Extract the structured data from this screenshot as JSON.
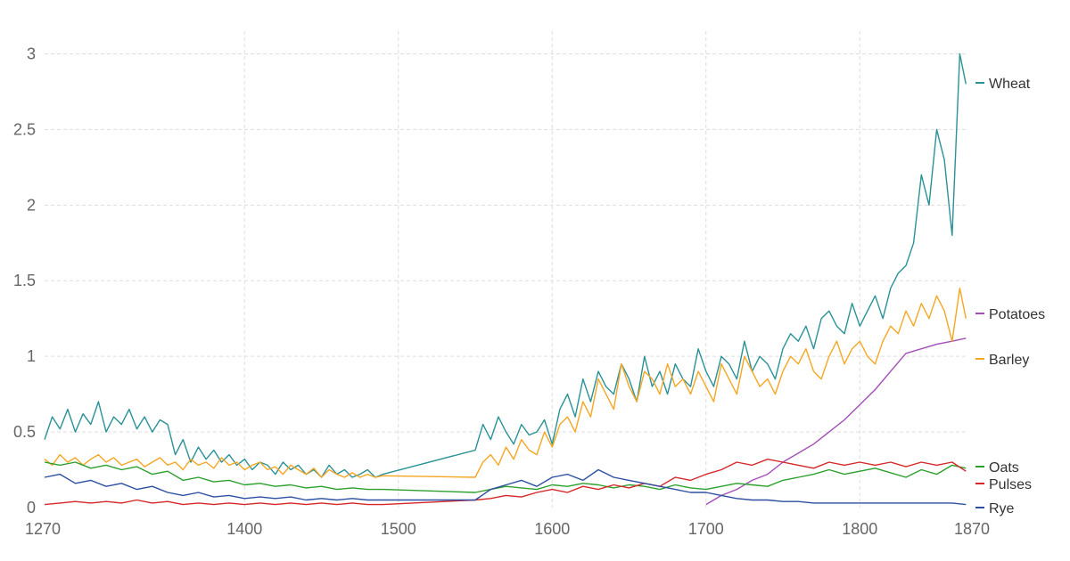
{
  "chart_data": {
    "type": "line",
    "title": "",
    "xlabel": "",
    "ylabel": "",
    "xlim": [
      1270,
      1870
    ],
    "ylim": [
      0,
      3.15
    ],
    "x_ticks": [
      1270,
      1400,
      1500,
      1600,
      1700,
      1800,
      1870
    ],
    "x_tick_labels": [
      "1270",
      "1400",
      "1500",
      "1600",
      "1700",
      "1800",
      "1870"
    ],
    "y_ticks": [
      0,
      0.5,
      1,
      1.5,
      2,
      2.5,
      3
    ],
    "y_tick_labels": [
      "0",
      "0.5",
      "1",
      "1.5",
      "2",
      "2.5",
      "3"
    ],
    "grid": true,
    "legend_position": "right, at series ends",
    "series": [
      {
        "name": "Wheat",
        "color": "#2a9297",
        "x": [
          1270,
          1275,
          1280,
          1285,
          1290,
          1295,
          1300,
          1305,
          1310,
          1315,
          1320,
          1325,
          1330,
          1335,
          1340,
          1345,
          1350,
          1355,
          1360,
          1365,
          1370,
          1375,
          1380,
          1385,
          1390,
          1395,
          1400,
          1405,
          1410,
          1415,
          1420,
          1425,
          1430,
          1435,
          1440,
          1445,
          1450,
          1455,
          1460,
          1465,
          1470,
          1475,
          1480,
          1485,
          1490,
          1550,
          1555,
          1560,
          1565,
          1570,
          1575,
          1580,
          1585,
          1590,
          1595,
          1600,
          1605,
          1610,
          1615,
          1620,
          1625,
          1630,
          1635,
          1640,
          1645,
          1650,
          1655,
          1660,
          1665,
          1670,
          1675,
          1680,
          1685,
          1690,
          1695,
          1700,
          1705,
          1710,
          1715,
          1720,
          1725,
          1730,
          1735,
          1740,
          1745,
          1750,
          1755,
          1760,
          1765,
          1770,
          1775,
          1780,
          1785,
          1790,
          1795,
          1800,
          1805,
          1810,
          1815,
          1820,
          1825,
          1830,
          1835,
          1840,
          1845,
          1850,
          1855,
          1860,
          1865,
          1869
        ],
        "values": [
          0.45,
          0.6,
          0.52,
          0.65,
          0.5,
          0.62,
          0.55,
          0.7,
          0.5,
          0.6,
          0.55,
          0.65,
          0.52,
          0.6,
          0.5,
          0.58,
          0.55,
          0.35,
          0.45,
          0.3,
          0.4,
          0.32,
          0.38,
          0.3,
          0.35,
          0.28,
          0.32,
          0.25,
          0.3,
          0.28,
          0.22,
          0.3,
          0.25,
          0.28,
          0.22,
          0.25,
          0.2,
          0.28,
          0.22,
          0.25,
          0.2,
          0.22,
          0.25,
          0.2,
          0.22,
          0.38,
          0.55,
          0.45,
          0.6,
          0.5,
          0.42,
          0.55,
          0.48,
          0.5,
          0.58,
          0.42,
          0.65,
          0.75,
          0.6,
          0.85,
          0.7,
          0.9,
          0.8,
          0.75,
          0.95,
          0.85,
          0.7,
          1.0,
          0.8,
          0.9,
          0.75,
          0.95,
          0.85,
          0.8,
          1.05,
          0.9,
          0.8,
          1.0,
          0.95,
          0.85,
          1.1,
          0.9,
          1.0,
          0.95,
          0.85,
          1.05,
          1.15,
          1.1,
          1.2,
          1.05,
          1.25,
          1.3,
          1.2,
          1.15,
          1.35,
          1.2,
          1.3,
          1.4,
          1.25,
          1.45,
          1.55,
          1.6,
          1.75,
          2.2,
          2.0,
          2.5,
          2.3,
          1.8,
          3.0,
          2.8
        ]
      },
      {
        "name": "Potatoes",
        "color": "#a34eb8",
        "x": [
          1700,
          1710,
          1720,
          1730,
          1740,
          1750,
          1760,
          1770,
          1780,
          1790,
          1800,
          1810,
          1820,
          1830,
          1840,
          1850,
          1860,
          1869
        ],
        "values": [
          0.02,
          0.08,
          0.12,
          0.18,
          0.22,
          0.3,
          0.36,
          0.42,
          0.5,
          0.58,
          0.68,
          0.78,
          0.9,
          1.02,
          1.05,
          1.08,
          1.1,
          1.12
        ]
      },
      {
        "name": "Barley",
        "color": "#f5a623",
        "x": [
          1270,
          1275,
          1280,
          1285,
          1290,
          1295,
          1300,
          1305,
          1310,
          1315,
          1320,
          1325,
          1330,
          1335,
          1340,
          1345,
          1350,
          1355,
          1360,
          1365,
          1370,
          1375,
          1380,
          1385,
          1390,
          1395,
          1400,
          1405,
          1410,
          1415,
          1420,
          1425,
          1430,
          1435,
          1440,
          1445,
          1450,
          1455,
          1460,
          1465,
          1470,
          1475,
          1480,
          1485,
          1490,
          1550,
          1555,
          1560,
          1565,
          1570,
          1575,
          1580,
          1585,
          1590,
          1595,
          1600,
          1605,
          1610,
          1615,
          1620,
          1625,
          1630,
          1635,
          1640,
          1645,
          1650,
          1655,
          1660,
          1665,
          1670,
          1675,
          1680,
          1685,
          1690,
          1695,
          1700,
          1705,
          1710,
          1715,
          1720,
          1725,
          1730,
          1735,
          1740,
          1745,
          1750,
          1755,
          1760,
          1765,
          1770,
          1775,
          1780,
          1785,
          1790,
          1795,
          1800,
          1805,
          1810,
          1815,
          1820,
          1825,
          1830,
          1835,
          1840,
          1845,
          1850,
          1855,
          1860,
          1865,
          1869
        ],
        "values": [
          0.32,
          0.28,
          0.35,
          0.3,
          0.33,
          0.28,
          0.32,
          0.35,
          0.3,
          0.33,
          0.28,
          0.3,
          0.32,
          0.27,
          0.3,
          0.33,
          0.28,
          0.3,
          0.25,
          0.32,
          0.28,
          0.3,
          0.26,
          0.33,
          0.28,
          0.3,
          0.25,
          0.28,
          0.3,
          0.25,
          0.27,
          0.22,
          0.28,
          0.25,
          0.22,
          0.26,
          0.2,
          0.25,
          0.22,
          0.2,
          0.23,
          0.2,
          0.22,
          0.2,
          0.21,
          0.2,
          0.3,
          0.35,
          0.28,
          0.4,
          0.32,
          0.45,
          0.38,
          0.35,
          0.5,
          0.4,
          0.55,
          0.6,
          0.5,
          0.7,
          0.6,
          0.85,
          0.75,
          0.65,
          0.95,
          0.8,
          0.7,
          0.9,
          0.85,
          0.75,
          0.95,
          0.8,
          0.85,
          0.75,
          0.9,
          0.8,
          0.7,
          0.95,
          0.85,
          0.75,
          1.0,
          0.9,
          0.8,
          0.85,
          0.75,
          0.9,
          1.0,
          0.95,
          1.05,
          0.9,
          0.85,
          1.0,
          1.1,
          0.95,
          1.05,
          1.1,
          1.0,
          0.95,
          1.1,
          1.2,
          1.15,
          1.3,
          1.2,
          1.35,
          1.25,
          1.4,
          1.3,
          1.1,
          1.45,
          1.25
        ]
      },
      {
        "name": "Oats",
        "color": "#2ca02c",
        "x": [
          1270,
          1280,
          1290,
          1300,
          1310,
          1320,
          1330,
          1340,
          1350,
          1360,
          1370,
          1380,
          1390,
          1400,
          1410,
          1420,
          1430,
          1440,
          1450,
          1460,
          1470,
          1480,
          1490,
          1550,
          1560,
          1570,
          1580,
          1590,
          1600,
          1610,
          1620,
          1630,
          1640,
          1650,
          1660,
          1670,
          1680,
          1690,
          1700,
          1710,
          1720,
          1730,
          1740,
          1750,
          1760,
          1770,
          1780,
          1790,
          1800,
          1810,
          1820,
          1830,
          1840,
          1850,
          1860,
          1869
        ],
        "values": [
          0.3,
          0.28,
          0.3,
          0.26,
          0.28,
          0.25,
          0.27,
          0.22,
          0.24,
          0.18,
          0.2,
          0.17,
          0.18,
          0.15,
          0.16,
          0.14,
          0.15,
          0.13,
          0.14,
          0.12,
          0.13,
          0.12,
          0.12,
          0.1,
          0.12,
          0.14,
          0.13,
          0.12,
          0.15,
          0.14,
          0.16,
          0.15,
          0.13,
          0.15,
          0.14,
          0.12,
          0.15,
          0.13,
          0.12,
          0.14,
          0.16,
          0.15,
          0.14,
          0.18,
          0.2,
          0.22,
          0.25,
          0.22,
          0.24,
          0.26,
          0.23,
          0.2,
          0.25,
          0.22,
          0.28,
          0.26
        ]
      },
      {
        "name": "Pulses",
        "color": "#d62728",
        "x": [
          1270,
          1280,
          1290,
          1300,
          1310,
          1320,
          1330,
          1340,
          1350,
          1360,
          1370,
          1380,
          1390,
          1400,
          1410,
          1420,
          1430,
          1440,
          1450,
          1460,
          1470,
          1480,
          1490,
          1550,
          1560,
          1570,
          1580,
          1590,
          1600,
          1610,
          1620,
          1630,
          1640,
          1650,
          1660,
          1670,
          1680,
          1690,
          1700,
          1710,
          1720,
          1730,
          1740,
          1750,
          1760,
          1770,
          1780,
          1790,
          1800,
          1810,
          1820,
          1830,
          1840,
          1850,
          1860,
          1869
        ],
        "values": [
          0.02,
          0.03,
          0.04,
          0.03,
          0.04,
          0.03,
          0.05,
          0.03,
          0.04,
          0.02,
          0.03,
          0.02,
          0.03,
          0.02,
          0.03,
          0.02,
          0.03,
          0.02,
          0.03,
          0.02,
          0.03,
          0.02,
          0.02,
          0.05,
          0.06,
          0.08,
          0.07,
          0.1,
          0.12,
          0.1,
          0.14,
          0.12,
          0.15,
          0.13,
          0.16,
          0.14,
          0.2,
          0.18,
          0.22,
          0.25,
          0.3,
          0.28,
          0.32,
          0.3,
          0.28,
          0.26,
          0.3,
          0.28,
          0.3,
          0.28,
          0.3,
          0.27,
          0.3,
          0.28,
          0.3,
          0.24
        ]
      },
      {
        "name": "Rye",
        "color": "#2c4fa3",
        "x": [
          1270,
          1280,
          1290,
          1300,
          1310,
          1320,
          1330,
          1340,
          1350,
          1360,
          1370,
          1380,
          1390,
          1400,
          1410,
          1420,
          1430,
          1440,
          1450,
          1460,
          1470,
          1480,
          1490,
          1550,
          1560,
          1570,
          1580,
          1590,
          1600,
          1610,
          1620,
          1630,
          1640,
          1650,
          1660,
          1670,
          1680,
          1690,
          1700,
          1710,
          1720,
          1730,
          1740,
          1750,
          1760,
          1770,
          1780,
          1790,
          1800,
          1810,
          1820,
          1830,
          1840,
          1850,
          1860,
          1869
        ],
        "values": [
          0.2,
          0.22,
          0.16,
          0.18,
          0.14,
          0.16,
          0.12,
          0.14,
          0.1,
          0.08,
          0.1,
          0.07,
          0.08,
          0.06,
          0.07,
          0.06,
          0.07,
          0.05,
          0.06,
          0.05,
          0.06,
          0.05,
          0.05,
          0.05,
          0.12,
          0.15,
          0.18,
          0.14,
          0.2,
          0.22,
          0.18,
          0.25,
          0.2,
          0.18,
          0.16,
          0.14,
          0.12,
          0.1,
          0.1,
          0.08,
          0.06,
          0.05,
          0.05,
          0.04,
          0.04,
          0.03,
          0.03,
          0.03,
          0.03,
          0.03,
          0.03,
          0.03,
          0.03,
          0.03,
          0.03,
          0.02
        ]
      }
    ]
  }
}
